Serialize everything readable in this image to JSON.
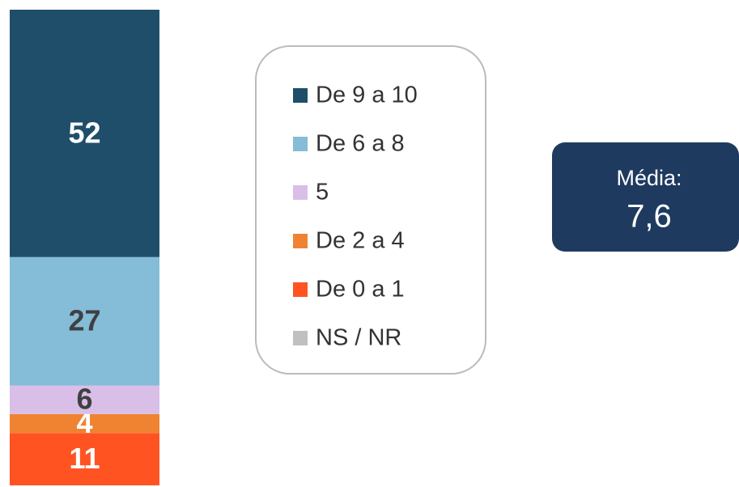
{
  "chart_data": {
    "type": "stacked-bar",
    "series": [
      {
        "name": "De 9 a 10",
        "color": "#1f4e6b",
        "values": [
          52
        ]
      },
      {
        "name": "De 6 a 8",
        "color": "#85bcd8",
        "values": [
          27
        ]
      },
      {
        "name": "5",
        "color": "#d9bfe8",
        "values": [
          6
        ]
      },
      {
        "name": "De 2 a 4",
        "color": "#f08331",
        "values": [
          4
        ]
      },
      {
        "name": "De 0 a 1",
        "color": "#ff5422",
        "values": [
          11
        ]
      },
      {
        "name": "NS / NR",
        "color": "#c0c0c0",
        "values": [
          null
        ]
      }
    ],
    "ylim": [
      0,
      100
    ],
    "annotation": {
      "label": "Média:",
      "text": "7,6"
    }
  }
}
